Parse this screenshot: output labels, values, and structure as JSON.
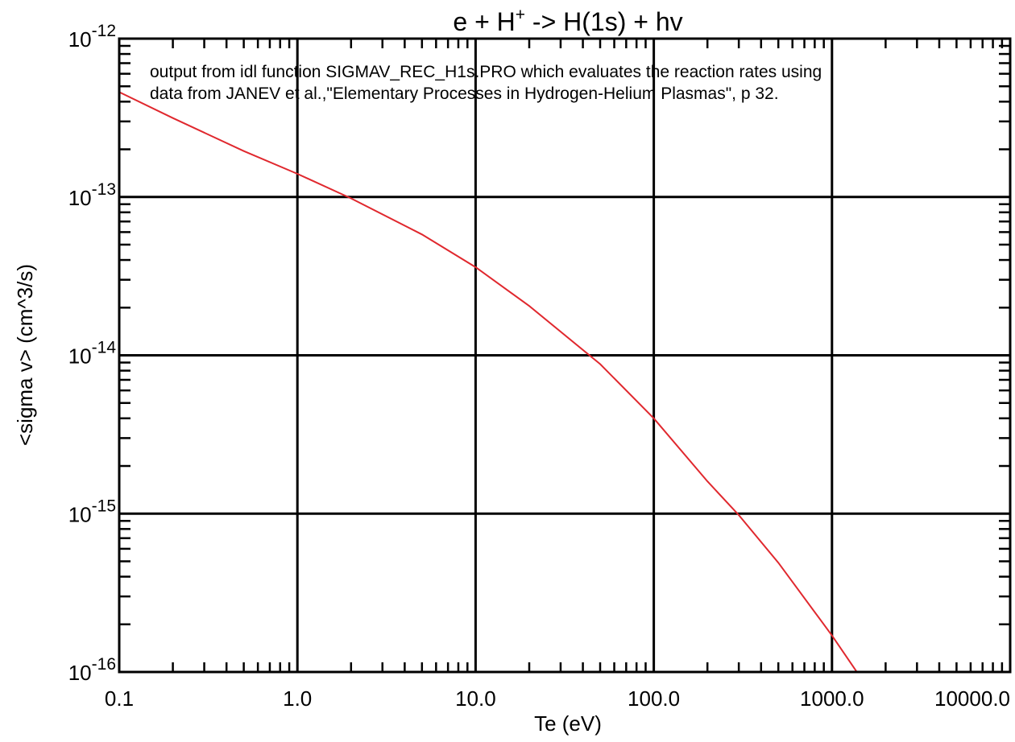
{
  "chart_data": {
    "type": "line",
    "title": {
      "prefix": "e + H",
      "superscript": "+",
      "suffix": " -> H(1s) + hv"
    },
    "xlabel": "Te (eV)",
    "ylabel": "<sigma v> (cm^3/s)",
    "x_scale": "log",
    "y_scale": "log",
    "xlim": [
      0.1,
      10000.0
    ],
    "ylim": [
      1e-16,
      1e-12
    ],
    "grid": true,
    "x_ticks": [
      {
        "value": 0.1,
        "label": "0.1"
      },
      {
        "value": 1.0,
        "label": "1.0"
      },
      {
        "value": 10.0,
        "label": "10.0"
      },
      {
        "value": 100.0,
        "label": "100.0"
      },
      {
        "value": 1000.0,
        "label": "1000.0"
      },
      {
        "value": 10000.0,
        "label": "10000.0"
      }
    ],
    "y_ticks": [
      {
        "value": 1e-12,
        "base": "10",
        "exponent": "-12"
      },
      {
        "value": 1e-13,
        "base": "10",
        "exponent": "-13"
      },
      {
        "value": 1e-14,
        "base": "10",
        "exponent": "-14"
      },
      {
        "value": 1e-15,
        "base": "10",
        "exponent": "-15"
      },
      {
        "value": 1e-16,
        "base": "10",
        "exponent": "-16"
      }
    ],
    "annotation": [
      "output from idl function SIGMAV_REC_H1s.PRO which evaluates the reaction rates using",
      "data from JANEV et al.,\"Elementary Processes in Hydrogen-Helium Plasmas\", p 32."
    ],
    "series": [
      {
        "color": "#e0282e",
        "x": [
          0.1,
          0.2,
          0.5,
          1.0,
          2.0,
          5.0,
          10.0,
          20.0,
          50.0,
          100.0,
          200.0,
          300.0,
          500.0,
          1000.0,
          1500.0
        ],
        "y": [
          4.6e-13,
          3.15e-13,
          1.95e-13,
          1.4e-13,
          9.8e-14,
          5.8e-14,
          3.6e-14,
          2.05e-14,
          8.8e-15,
          4e-15,
          1.6e-15,
          9.8e-16,
          4.9e-16,
          1.7e-16,
          8.7e-17
        ]
      }
    ]
  }
}
